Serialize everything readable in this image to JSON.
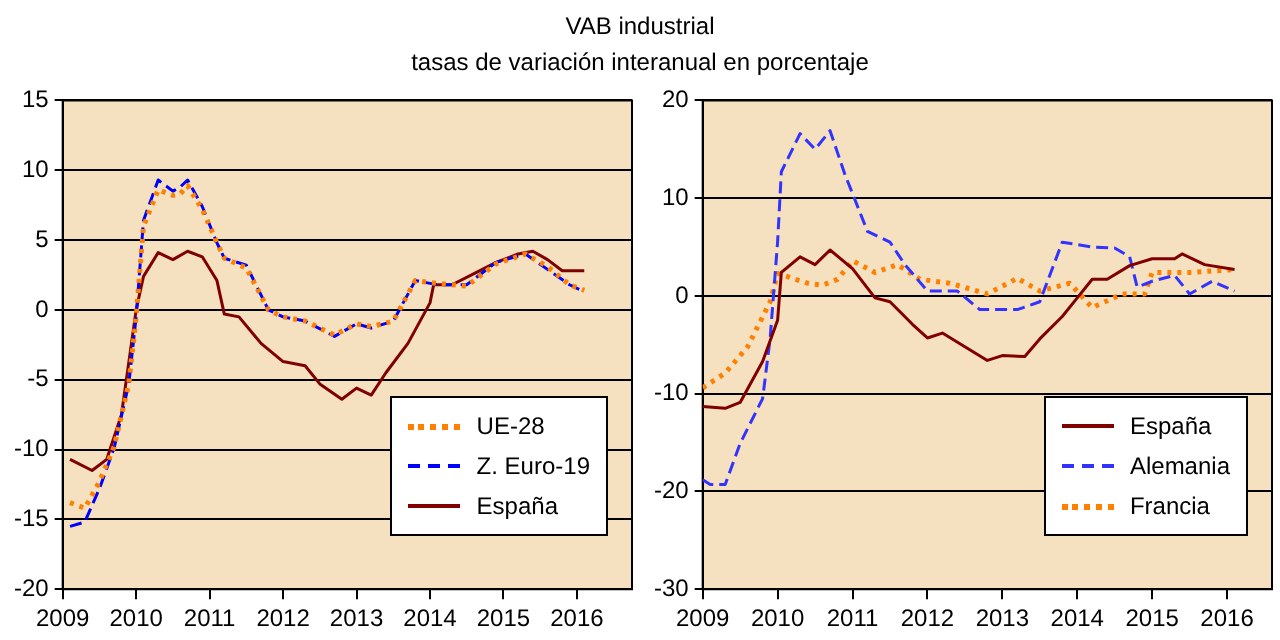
{
  "chart_data": [
    {
      "type": "line",
      "title": "VAB industrial",
      "subtitle": "tasas de variación interanual en porcentaje",
      "xlim": [
        2009,
        2016.75
      ],
      "xticks": [
        2009,
        2010,
        2011,
        2012,
        2013,
        2014,
        2015,
        2016
      ],
      "ylim": [
        -20,
        15
      ],
      "yticks": [
        -20,
        -15,
        -10,
        -5,
        0,
        5,
        10,
        15
      ],
      "grid": "y",
      "legend": "bottom right",
      "series": [
        {
          "name": "UE-28",
          "color": "#ff8000",
          "line_style": "dotted",
          "x": [
            2009.1,
            2009.3,
            2009.5,
            2009.7,
            2009.9,
            2010.0,
            2010.1,
            2010.3,
            2010.5,
            2010.6,
            2010.7,
            2010.9,
            2011.1,
            2011.2,
            2011.5,
            2011.8,
            2012.0,
            2012.3,
            2012.7,
            2013.0,
            2013.2,
            2013.5,
            2013.8,
            2014.1,
            2014.5,
            2014.9,
            2015.3,
            2015.6,
            2015.9,
            2016.1
          ],
          "values": [
            -13.8,
            -14.2,
            -12.3,
            -9.8,
            -5.3,
            -0.5,
            6.0,
            8.6,
            8.2,
            8.3,
            8.9,
            7.2,
            4.8,
            3.7,
            3.0,
            0,
            -0.5,
            -0.8,
            -1.8,
            -1.0,
            -1.2,
            -0.8,
            2.1,
            1.9,
            1.7,
            3.3,
            4.0,
            3.1,
            1.8,
            1.4
          ]
        },
        {
          "name": "Z. Euro-19",
          "color": "#0000ff",
          "line_style": "dashed",
          "x": [
            2009.1,
            2009.3,
            2009.5,
            2009.7,
            2009.9,
            2010.0,
            2010.1,
            2010.3,
            2010.5,
            2010.6,
            2010.7,
            2010.9,
            2011.1,
            2011.2,
            2011.5,
            2011.8,
            2012.0,
            2012.3,
            2012.7,
            2013.0,
            2013.2,
            2013.5,
            2013.8,
            2014.1,
            2014.5,
            2014.9,
            2015.3,
            2015.6,
            2015.9,
            2016.1
          ],
          "values": [
            -15.5,
            -15.2,
            -12.8,
            -9.9,
            -5.3,
            -0.5,
            6.4,
            9.3,
            8.5,
            8.8,
            9.3,
            7.4,
            4.8,
            3.7,
            3.2,
            0,
            -0.5,
            -0.8,
            -1.9,
            -1.0,
            -1.3,
            -0.8,
            2.1,
            1.8,
            1.8,
            3.4,
            4.0,
            2.9,
            1.8,
            1.3
          ]
        },
        {
          "name": "España",
          "color": "#800000",
          "line_style": "solid",
          "x": [
            2009.1,
            2009.4,
            2009.6,
            2009.8,
            2010.0,
            2010.1,
            2010.3,
            2010.5,
            2010.7,
            2010.9,
            2011.1,
            2011.2,
            2011.4,
            2011.7,
            2012.0,
            2012.3,
            2012.5,
            2012.8,
            2013.0,
            2013.2,
            2013.4,
            2013.7,
            2014.0,
            2014.05,
            2014.3,
            2014.6,
            2014.9,
            2015.2,
            2015.4,
            2015.6,
            2015.8,
            2016.1
          ],
          "values": [
            -10.7,
            -11.5,
            -10.7,
            -7.5,
            0,
            2.4,
            4.1,
            3.6,
            4.2,
            3.8,
            2.1,
            -0.3,
            -0.5,
            -2.4,
            -3.7,
            -4.0,
            -5.3,
            -6.4,
            -5.6,
            -6.1,
            -4.5,
            -2.4,
            0.5,
            1.8,
            1.8,
            2.6,
            3.4,
            4.0,
            4.2,
            3.6,
            2.8,
            2.8
          ]
        }
      ]
    },
    {
      "type": "line",
      "xlim": [
        2009,
        2016.6
      ],
      "xticks": [
        2009,
        2010,
        2011,
        2012,
        2013,
        2014,
        2015,
        2016
      ],
      "ylim": [
        -30,
        20
      ],
      "yticks": [
        -30,
        -20,
        -10,
        0,
        10,
        20
      ],
      "grid": "y",
      "legend": "bottom right",
      "series": [
        {
          "name": "España",
          "color": "#800000",
          "line_style": "solid",
          "x": [
            2009.0,
            2009.3,
            2009.5,
            2009.8,
            2010.0,
            2010.05,
            2010.3,
            2010.5,
            2010.7,
            2011.0,
            2011.3,
            2011.5,
            2011.8,
            2012.0,
            2012.2,
            2012.5,
            2012.8,
            2013.0,
            2013.3,
            2013.5,
            2013.8,
            2014.0,
            2014.2,
            2014.4,
            2014.7,
            2015.0,
            2015.3,
            2015.4,
            2015.7,
            2016.1
          ],
          "values": [
            -11.3,
            -11.5,
            -10.9,
            -6.7,
            -2.5,
            2.4,
            4.0,
            3.2,
            4.7,
            2.8,
            -0.2,
            -0.6,
            -2.9,
            -4.3,
            -3.8,
            -5.2,
            -6.6,
            -6.1,
            -6.2,
            -4.4,
            -2.1,
            -0.2,
            1.7,
            1.7,
            3.1,
            3.8,
            3.8,
            4.3,
            3.2,
            2.7
          ]
        },
        {
          "name": "Alemania",
          "color": "#3333ff",
          "line_style": "dashed",
          "x": [
            2009.0,
            2009.1,
            2009.3,
            2009.5,
            2009.8,
            2009.9,
            2010.0,
            2010.05,
            2010.3,
            2010.5,
            2010.7,
            2010.9,
            2011.2,
            2011.5,
            2011.7,
            2012.0,
            2012.4,
            2012.7,
            2013.2,
            2013.5,
            2013.8,
            2014.2,
            2014.5,
            2014.7,
            2014.8,
            2015.0,
            2015.3,
            2015.5,
            2015.8,
            2016.1
          ],
          "values": [
            -18.8,
            -19.3,
            -19.3,
            -15.1,
            -10.5,
            -4.4,
            5.5,
            12.7,
            16.6,
            15.0,
            16.9,
            12.4,
            6.6,
            5.5,
            3.2,
            0.5,
            0.5,
            -1.4,
            -1.4,
            -0.6,
            5.5,
            5.0,
            4.9,
            4.0,
            0.9,
            1.5,
            2.1,
            0.2,
            1.5,
            0.5
          ]
        },
        {
          "name": "Francia",
          "color": "#ff8000",
          "line_style": "dotted",
          "x": [
            2009.0,
            2009.3,
            2009.6,
            2009.9,
            2010.0,
            2010.4,
            2010.6,
            2010.8,
            2011.0,
            2011.3,
            2011.6,
            2011.9,
            2012.3,
            2012.8,
            2013.2,
            2013.5,
            2013.9,
            2014.2,
            2014.6,
            2014.9,
            2015.0,
            2015.5,
            2016.1
          ],
          "values": [
            -9.4,
            -7.9,
            -5.2,
            -0.6,
            2.3,
            1.3,
            1.1,
            1.7,
            3.6,
            2.4,
            3.2,
            1.7,
            1.3,
            0.2,
            1.8,
            0.5,
            1.3,
            -1.2,
            0.2,
            0.2,
            2.4,
            2.4,
            2.7
          ]
        }
      ]
    }
  ]
}
